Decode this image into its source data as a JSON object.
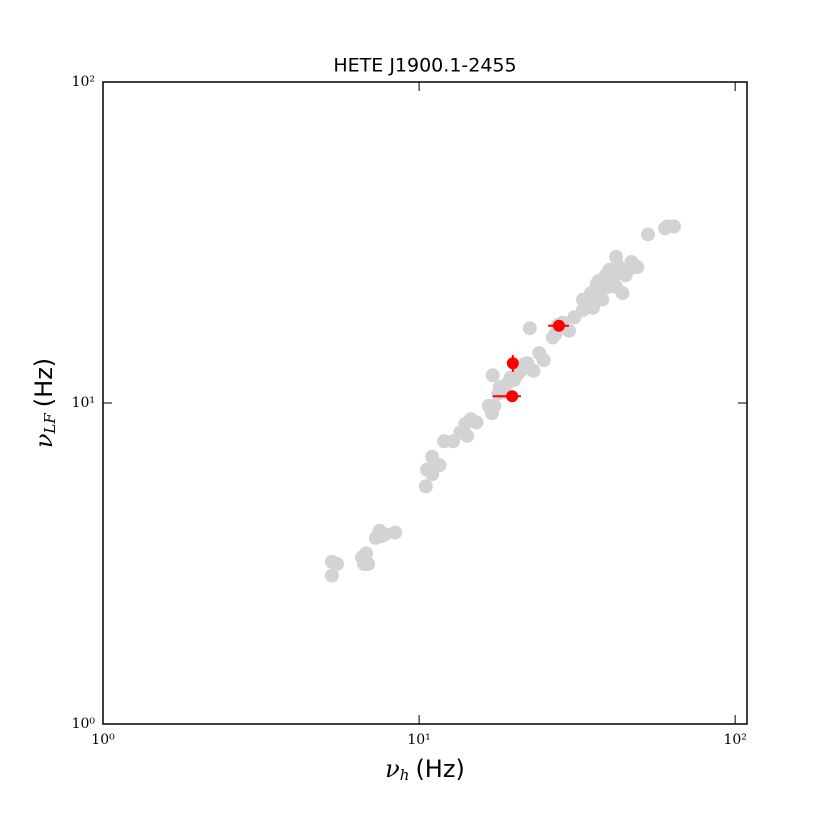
{
  "chart_data": {
    "type": "scatter",
    "title": "HETE J1900.1-2455",
    "xlabel": {
      "symbol": "ν",
      "sub": "h",
      "unit": "(Hz)"
    },
    "ylabel": {
      "symbol": "ν",
      "sub": "LF",
      "unit": "(Hz)"
    },
    "xscale": "log",
    "yscale": "log",
    "xlim": [
      1,
      109
    ],
    "ylim": [
      1,
      100
    ],
    "xticks": [
      {
        "value": 1,
        "label": "10⁰"
      },
      {
        "value": 10,
        "label": "10¹"
      },
      {
        "value": 100,
        "label": "10²"
      }
    ],
    "yticks": [
      {
        "value": 1,
        "label": "10⁰"
      },
      {
        "value": 10,
        "label": "10¹"
      },
      {
        "value": 100,
        "label": "10²"
      }
    ],
    "series": [
      {
        "color": "#d3d3d3",
        "x": [
          5.3,
          5.3,
          5.5,
          6.6,
          6.8,
          6.7,
          6.9,
          7.3,
          7.5,
          7.8,
          8.4,
          7.6,
          10.5,
          10.6,
          11.0,
          11.0,
          11.6,
          12.0,
          12.8,
          13.5,
          14.0,
          14.2,
          14.6,
          15.2,
          16.6,
          17.0,
          17.3,
          17.1,
          17.8,
          18.0,
          18.6,
          19.0,
          19.5,
          20.0,
          20.5,
          21.0,
          21.5,
          22.0,
          22.4,
          23.0,
          24.0,
          24.8,
          26.5,
          27.5,
          27.0,
          28.5,
          29.8,
          31.0,
          33.0,
          34.5,
          35.0,
          35.5,
          36.0,
          37.0,
          37.5,
          38.0,
          39.0,
          39.5,
          40.0,
          41.0,
          42.0,
          42.0,
          43.0,
          44.0,
          45.0,
          46.0,
          47.0,
          49.0,
          53.0,
          60.0,
          61.0,
          64.0,
          33.0,
          36.5
        ],
        "values": [
          3.2,
          2.9,
          3.15,
          3.3,
          3.4,
          3.15,
          3.15,
          3.8,
          4.0,
          3.9,
          3.95,
          3.85,
          5.5,
          6.2,
          6.0,
          6.8,
          6.4,
          7.6,
          7.6,
          8.1,
          8.6,
          7.9,
          8.9,
          8.7,
          9.8,
          9.3,
          9.8,
          12.2,
          10.7,
          11.2,
          10.8,
          11.5,
          12.0,
          11.8,
          12.3,
          12.6,
          13.2,
          13.3,
          17.1,
          12.6,
          14.3,
          13.6,
          16.0,
          17.5,
          16.4,
          17.8,
          16.8,
          18.5,
          19.5,
          20.5,
          22.0,
          19.8,
          21.5,
          24.0,
          22.5,
          21.0,
          25.0,
          23.0,
          26.0,
          24.5,
          28.5,
          23.0,
          26.5,
          22.0,
          25.0,
          26.0,
          27.5,
          26.5,
          33.5,
          35.0,
          35.5,
          35.5,
          21.0,
          23.5
        ]
      },
      {
        "color": "#ff0000",
        "x": [
          19.7,
          19.8,
          27.7
        ],
        "values": [
          10.5,
          13.3,
          17.4
        ],
        "xerr": [
          [
            2.6,
            1.3
          ],
          [
            0.4,
            0.4
          ],
          [
            2.1,
            2.1
          ]
        ],
        "yerr": [
          [
            0.2,
            0.2
          ],
          [
            0.8,
            0.8
          ],
          [
            0.3,
            0.3
          ]
        ]
      }
    ]
  }
}
